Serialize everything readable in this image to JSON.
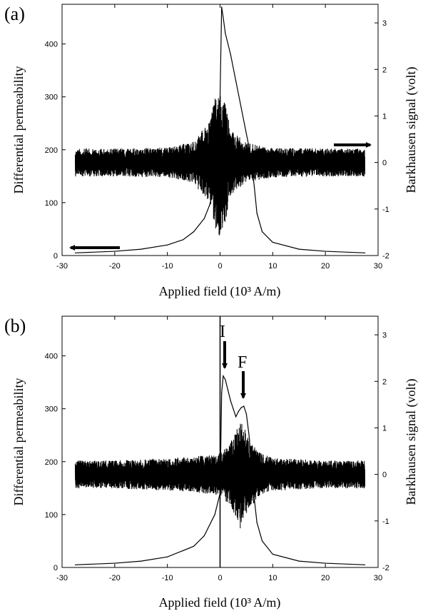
{
  "chart_data": [
    {
      "type": "line",
      "panel_label": "(a)",
      "xlabel": "Applied field (10³ A/m)",
      "ylabel": "Differential permeability",
      "y2label": "Barkhausen signal (volt)",
      "xlim": [
        -30,
        30
      ],
      "ylim": [
        0,
        475
      ],
      "y2lim": [
        -2,
        3.4
      ],
      "xticks": [
        -30,
        -20,
        -10,
        0,
        10,
        20,
        30
      ],
      "yticks": [
        0,
        100,
        200,
        300,
        400
      ],
      "y2ticks": [
        -2,
        -1,
        0,
        1,
        2,
        3
      ],
      "grid": false,
      "series": [
        {
          "axis": "left",
          "x": [
            -27.5,
            -20,
            -15,
            -10,
            -7,
            -5,
            -3,
            -2,
            -1,
            -0.5,
            0,
            0.3,
            0.6,
            1,
            2,
            3,
            4,
            5,
            5.8,
            6.5,
            7,
            8,
            10,
            15,
            20,
            27.5
          ],
          "values": [
            5,
            8,
            12,
            20,
            30,
            45,
            70,
            95,
            130,
            190,
            300,
            470,
            450,
            420,
            380,
            330,
            280,
            230,
            190,
            130,
            80,
            45,
            25,
            12,
            8,
            5
          ]
        },
        {
          "axis": "right",
          "noise": true,
          "x_range": [
            -27.5,
            27.5
          ],
          "baseline": 0,
          "envelope": {
            "x": [
              -27.5,
              -20,
              -10,
              -5,
              -2,
              -1,
              0,
              1,
              2,
              5,
              10,
              20,
              27.5
            ],
            "amplitude": [
              0.3,
              0.3,
              0.32,
              0.45,
              0.9,
              1.4,
              1.6,
              1.3,
              0.7,
              0.42,
              0.32,
              0.3,
              0.3
            ]
          }
        }
      ],
      "arrows": [
        {
          "points_to": "right-axis",
          "x": 22,
          "y2": 0.37
        },
        {
          "points_to": "left-axis",
          "x": -19,
          "y": 15
        }
      ]
    },
    {
      "type": "line",
      "panel_label": "(b)",
      "xlabel": "Applied field (10³ A/m)",
      "ylabel": "Differential permeability",
      "y2label": "Barkhausen signal (volt)",
      "xlim": [
        -30,
        30
      ],
      "ylim": [
        0,
        475
      ],
      "y2lim": [
        -2,
        3.4
      ],
      "xticks": [
        -30,
        -20,
        -10,
        0,
        10,
        20,
        30
      ],
      "yticks": [
        0,
        100,
        200,
        300,
        400
      ],
      "y2ticks": [
        -2,
        -1,
        0,
        1,
        2,
        3
      ],
      "grid": false,
      "series": [
        {
          "axis": "left",
          "x": [
            -27.5,
            -20,
            -15,
            -10,
            -5,
            -3,
            -1,
            0,
            0.3,
            0.6,
            1,
            1.5,
            2,
            2.5,
            3,
            3.5,
            4,
            4.5,
            5,
            5.5,
            6,
            6.5,
            7,
            8,
            10,
            15,
            20,
            27.5
          ],
          "values": [
            5,
            8,
            12,
            20,
            40,
            60,
            100,
            140,
            330,
            362,
            355,
            335,
            315,
            300,
            285,
            295,
            302,
            305,
            290,
            250,
            190,
            130,
            85,
            50,
            25,
            12,
            8,
            5
          ]
        },
        {
          "axis": "right",
          "noise": true,
          "x_range": [
            -27.5,
            27.5
          ],
          "baseline": 0,
          "envelope": {
            "x": [
              -27.5,
              -20,
              -10,
              -5,
              0,
              2,
              4,
              5,
              7,
              10,
              20,
              27.5
            ],
            "amplitude": [
              0.3,
              0.3,
              0.35,
              0.38,
              0.45,
              0.7,
              1.2,
              0.9,
              0.5,
              0.35,
              0.3,
              0.3
            ]
          }
        },
        {
          "axis": "left",
          "vertical_line_at_x": 0
        }
      ],
      "annotations": [
        {
          "text": "I",
          "x": 0.8,
          "y": 362
        },
        {
          "text": "F",
          "x": 4.5,
          "y": 305
        }
      ]
    }
  ]
}
